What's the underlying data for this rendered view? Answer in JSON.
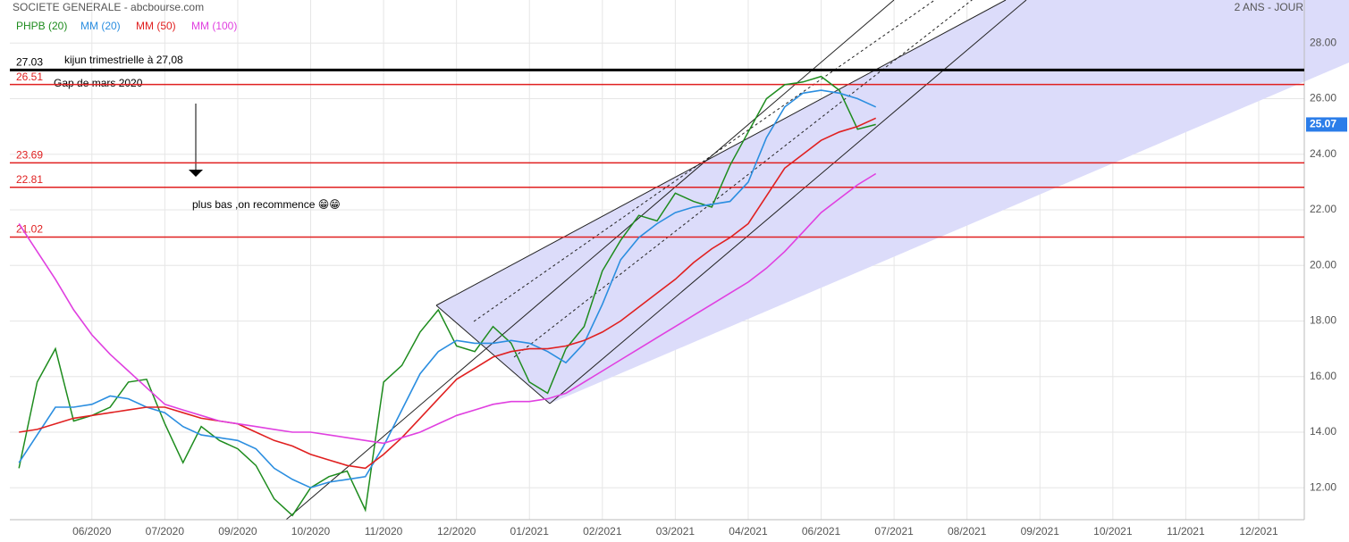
{
  "chart_data": {
    "type": "line",
    "title": "SOCIETE GENERALE - abcbourse.com",
    "subtitle": "2 ANS - JOUR",
    "categories": [
      null,
      null,
      null,
      null,
      "06/2020",
      null,
      null,
      null,
      "07/2020",
      null,
      null,
      null,
      "09/2020",
      null,
      null,
      null,
      "10/2020",
      null,
      null,
      null,
      "11/2020",
      null,
      null,
      null,
      "12/2020",
      null,
      null,
      null,
      "01/2021",
      null,
      null,
      null,
      "02/2021",
      null,
      null,
      null,
      "03/2021",
      null,
      null,
      null,
      "04/2021",
      null,
      null,
      null,
      "06/2021",
      null,
      null,
      null,
      "07/2021",
      null,
      null,
      null,
      "08/2021",
      null,
      null,
      null,
      "09/2021",
      null,
      null,
      null,
      "10/2021",
      null,
      null,
      null,
      "11/2021",
      null,
      null,
      null,
      "12/2021",
      null,
      null
    ],
    "series": [
      {
        "name": "PHPB (20)",
        "color": "#1e8c1e",
        "values": [
          12.7,
          15.8,
          17.0,
          14.4,
          14.6,
          14.9,
          15.8,
          15.9,
          14.3,
          12.9,
          14.2,
          13.7,
          13.4,
          12.8,
          11.6,
          11.0,
          12.0,
          12.4,
          12.6,
          11.2,
          15.8,
          16.4,
          17.6,
          18.4,
          17.1,
          16.9,
          17.8,
          17.2,
          15.8,
          15.4,
          17.0,
          17.8,
          19.8,
          20.9,
          21.8,
          21.6,
          22.6,
          22.3,
          22.1,
          23.6,
          24.8,
          26.0,
          26.5,
          26.6,
          26.8,
          26.3,
          24.9,
          25.07,
          null,
          null,
          null,
          null,
          null,
          null,
          null,
          null,
          null,
          null,
          null,
          null,
          null,
          null,
          null,
          null,
          null,
          null,
          null,
          null,
          null,
          null,
          null
        ]
      },
      {
        "name": "MM (20)",
        "color": "#2b8ee0",
        "values": [
          12.9,
          13.9,
          14.9,
          14.9,
          15.0,
          15.3,
          15.2,
          14.9,
          14.7,
          14.2,
          13.9,
          13.8,
          13.7,
          13.4,
          12.7,
          12.3,
          12.0,
          12.2,
          12.3,
          12.4,
          13.5,
          14.8,
          16.1,
          16.9,
          17.3,
          17.2,
          17.2,
          17.3,
          17.2,
          16.9,
          16.5,
          17.2,
          18.6,
          20.2,
          21.0,
          21.5,
          21.9,
          22.1,
          22.2,
          22.3,
          23.0,
          24.6,
          25.7,
          26.2,
          26.3,
          26.2,
          26.0,
          25.7,
          null,
          null,
          null,
          null,
          null,
          null,
          null,
          null,
          null,
          null,
          null,
          null,
          null,
          null,
          null,
          null,
          null,
          null,
          null,
          null,
          null,
          null,
          null
        ]
      },
      {
        "name": "MM (50)",
        "color": "#e02020",
        "values": [
          14.0,
          14.1,
          14.3,
          14.5,
          14.6,
          14.7,
          14.8,
          14.9,
          14.9,
          14.7,
          14.5,
          14.4,
          14.3,
          14.0,
          13.7,
          13.5,
          13.2,
          13.0,
          12.8,
          12.7,
          13.2,
          13.8,
          14.5,
          15.2,
          15.9,
          16.3,
          16.7,
          16.9,
          17.0,
          17.0,
          17.1,
          17.3,
          17.6,
          18.0,
          18.5,
          19.0,
          19.5,
          20.1,
          20.6,
          21.0,
          21.5,
          22.5,
          23.5,
          24.0,
          24.5,
          24.8,
          25.0,
          25.3,
          null,
          null,
          null,
          null,
          null,
          null,
          null,
          null,
          null,
          null,
          null,
          null,
          null,
          null,
          null,
          null,
          null,
          null,
          null,
          null,
          null,
          null,
          null
        ]
      },
      {
        "name": "MM (100)",
        "color": "#e040e0",
        "values": [
          21.5,
          20.5,
          19.5,
          18.4,
          17.5,
          16.8,
          16.2,
          15.6,
          15.0,
          14.8,
          14.6,
          14.4,
          14.3,
          14.2,
          14.1,
          14.0,
          14.0,
          13.9,
          13.8,
          13.7,
          13.6,
          13.8,
          14.0,
          14.3,
          14.6,
          14.8,
          15.0,
          15.1,
          15.1,
          15.2,
          15.4,
          15.8,
          16.2,
          16.6,
          17.0,
          17.4,
          17.8,
          18.2,
          18.6,
          19.0,
          19.4,
          19.9,
          20.5,
          21.2,
          21.9,
          22.4,
          22.9,
          23.3,
          null,
          null,
          null,
          null,
          null,
          null,
          null,
          null,
          null,
          null,
          null,
          null,
          null,
          null,
          null,
          null,
          null,
          null,
          null,
          null,
          null,
          null,
          null
        ]
      }
    ],
    "ylim": [
      10.85,
      29.55
    ],
    "yticks": [
      {
        "value": 12,
        "label": "12.00"
      },
      {
        "value": 14,
        "label": "14.00"
      },
      {
        "value": 16,
        "label": "16.00"
      },
      {
        "value": 18,
        "label": "18.00"
      },
      {
        "value": 20,
        "label": "20.00"
      },
      {
        "value": 22,
        "label": "22.00"
      },
      {
        "value": 24,
        "label": "24.00"
      },
      {
        "value": 26,
        "label": "26.00"
      },
      {
        "value": 28,
        "label": "28.00"
      }
    ],
    "grid": true,
    "last_price": 25.07,
    "levels": [
      {
        "value": 27.03,
        "color": "#000000"
      },
      {
        "value": 26.51,
        "color": "#e02020"
      },
      {
        "value": 23.69,
        "color": "#e02020"
      },
      {
        "value": 22.81,
        "color": "#e02020"
      },
      {
        "value": 21.02,
        "color": "#e02020"
      }
    ],
    "annotations": [
      "kijun trimestrielle à 27,08",
      "Gap de mars 2020",
      "plus bas ,on recommence 😁😁"
    ]
  }
}
